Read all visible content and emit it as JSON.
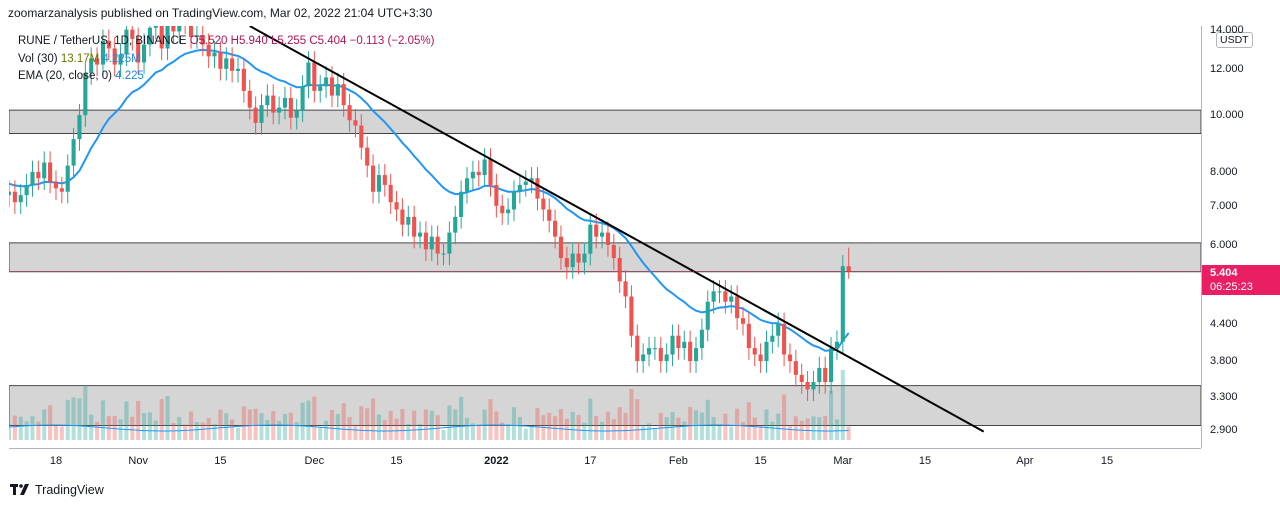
{
  "publisher": {
    "text": "zoomarzanalysis published on TradingView.com, Mar 02, 2022 21:04 UTC+3:30"
  },
  "legend": {
    "symbol": "RUNE / TetherUS, 1D, BINANCE",
    "open": "O5.520",
    "high": "H5.940",
    "low": "L5.255",
    "close": "C5.404",
    "change": "−0.113 (−2.05%)",
    "vol_label": "Vol (30)",
    "vol_value": "13.17M",
    "vol_ma": "4.225M",
    "ema_label": "EMA (20, close, 0)",
    "ema_value": "4.225"
  },
  "price_scale": {
    "currency": "USDT",
    "ticks": [
      "14.000",
      "12.000",
      "10.000",
      "8.000",
      "7.000",
      "6.000",
      "4.400",
      "3.800",
      "3.300",
      "2.900"
    ],
    "last_price": "5.404",
    "countdown": "06:25:23"
  },
  "time_scale": {
    "ticks": [
      "18",
      "Nov",
      "15",
      "Dec",
      "15",
      "2022",
      "17",
      "Feb",
      "15",
      "Mar",
      "15",
      "Apr",
      "15"
    ]
  },
  "footer": {
    "brand": "TradingView"
  },
  "colors": {
    "up": "#26a69a",
    "down": "#ef5350",
    "ema": "#2196f3",
    "zone": "#d5d5d5",
    "trendline": "#000000",
    "last_price": "#e91e63"
  },
  "chart_data": {
    "type": "candlestick",
    "title": "RUNE / TetherUS, 1D, BINANCE",
    "y_scale": "log",
    "ylim": [
      2.7,
      14.2
    ],
    "x_start": "2021-10-10",
    "x_end": "2022-05-01",
    "last_bar": "2022-03-02",
    "grid": false,
    "legend_position": "top-left",
    "closes": [
      7.7,
      7.3,
      7.4,
      7.1,
      7.3,
      7.6,
      8.0,
      7.8,
      8.3,
      7.7,
      7.5,
      7.4,
      8.2,
      9.1,
      10.0,
      11.8,
      12.5,
      12.2,
      13.4,
      13.0,
      12.2,
      12.7,
      14.0,
      13.5,
      12.3,
      13.2,
      14.1,
      14.5,
      13.0,
      14.4,
      13.9,
      14.6,
      14.4,
      13.6,
      13.7,
      13.2,
      12.6,
      12.8,
      12.0,
      12.5,
      11.9,
      12.0,
      11.0,
      10.3,
      9.7,
      10.4,
      10.8,
      10.1,
      10.3,
      10.7,
      9.9,
      10.2,
      11.2,
      12.3,
      11.0,
      11.2,
      11.6,
      10.8,
      11.3,
      10.4,
      9.8,
      9.6,
      8.8,
      8.2,
      7.4,
      7.9,
      7.6,
      7.1,
      6.9,
      6.5,
      6.7,
      6.2,
      6.3,
      5.9,
      6.2,
      5.8,
      5.8,
      6.3,
      6.7,
      7.4,
      7.8,
      8.0,
      7.9,
      8.4,
      7.6,
      7.0,
      6.8,
      6.9,
      7.4,
      7.6,
      7.7,
      7.8,
      7.2,
      6.9,
      6.6,
      6.2,
      5.7,
      5.5,
      5.8,
      5.6,
      5.8,
      6.5,
      6.2,
      6.3,
      6.0,
      5.7,
      5.2,
      4.9,
      4.2,
      3.8,
      3.9,
      4.0,
      4.0,
      3.8,
      3.9,
      4.2,
      4.0,
      4.1,
      3.8,
      4.0,
      4.3,
      4.8,
      5.0,
      5.0,
      4.8,
      4.9,
      4.5,
      4.4,
      4.0,
      3.9,
      3.8,
      4.1,
      4.2,
      4.4,
      3.9,
      3.8,
      3.6,
      3.5,
      3.4,
      3.5,
      3.7,
      3.5,
      4.0,
      4.1,
      5.52,
      5.404
    ],
    "ema": {
      "name": "EMA (20, close, 0)",
      "last": 4.225
    },
    "volume": {
      "name": "Vol (30)",
      "last": "13.17M",
      "ma_last": "4.225M"
    },
    "zones": [
      [
        9.3,
        10.2
      ],
      [
        5.4,
        6.05
      ],
      [
        2.95,
        3.45
      ]
    ],
    "trendline": {
      "from": [
        "2021-11-20",
        14.2
      ],
      "to": [
        "2022-03-25",
        2.88
      ]
    },
    "last_price_line": 5.404
  }
}
